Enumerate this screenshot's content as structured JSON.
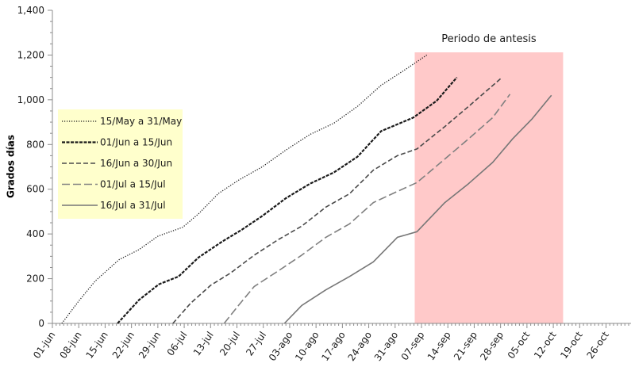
{
  "chart_data": {
    "type": "line",
    "title": "",
    "xlabel": "",
    "ylabel": "Grados días",
    "x_unit": "days since 01-jun",
    "xlim": [
      0,
      154
    ],
    "ylim": [
      0,
      1400
    ],
    "yticks": [
      0,
      200,
      400,
      600,
      800,
      1000,
      1200,
      1400
    ],
    "ytick_labels": [
      "0",
      "200",
      "400",
      "600",
      "800",
      "1,000",
      "1,200",
      "1,400"
    ],
    "xticks": [
      0,
      7,
      14,
      21,
      28,
      35,
      42,
      49,
      56,
      63,
      70,
      77,
      84,
      91,
      98,
      105,
      112,
      119,
      126,
      133,
      140,
      147
    ],
    "xtick_labels": [
      "01-jun",
      "08-jun",
      "15-jun",
      "22-jun",
      "29-jun",
      "06-jul",
      "13-jul",
      "20-jul",
      "27-jul",
      "03-ago",
      "10-ago",
      "17-ago",
      "24-ago",
      "31-ago",
      "07-sep",
      "14-sep",
      "21-sep",
      "28-sep",
      "05-oct",
      "12-oct",
      "19-oct",
      "26-oct"
    ],
    "grid": false,
    "legend_position": "left",
    "annotation": {
      "label": "Periodo de antesis",
      "x_range": [
        96.2,
        135.6
      ],
      "y_range": [
        0,
        1212
      ],
      "color": "#ffc9c9"
    },
    "series": [
      {
        "name": "15/May a 31/May",
        "style": "dotted",
        "color": "#1a1a1a",
        "x": [
          2.5,
          7,
          11.4,
          17.7,
          23,
          28,
          34.6,
          38.8,
          44,
          49.4,
          55.7,
          62,
          68.4,
          74.7,
          81,
          87.3,
          93.7,
          99.4
        ],
        "y": [
          0,
          100,
          190,
          285,
          330,
          390,
          430,
          490,
          580,
          640,
          700,
          775,
          845,
          895,
          970,
          1065,
          1135,
          1200
        ]
      },
      {
        "name": "01/Jun a 15/Jun",
        "style": "dashed-bold",
        "color": "#1a1a1a",
        "x": [
          17.3,
          23,
          28.3,
          33.5,
          38.8,
          45,
          50.4,
          55.7,
          62,
          68.4,
          74.7,
          81,
          87.3,
          95.8,
          102,
          107.4
        ],
        "y": [
          0,
          105,
          175,
          210,
          295,
          365,
          420,
          480,
          560,
          625,
          675,
          745,
          860,
          920,
          995,
          1100
        ]
      },
      {
        "name": "16/Jun a 30/Jun",
        "style": "dashed",
        "color": "#4a4a4a",
        "x": [
          32,
          36.7,
          42,
          47.3,
          53.6,
          60,
          66.2,
          72.6,
          78.9,
          85.2,
          91.6,
          96.8,
          104.2,
          110.5,
          119.4
        ],
        "y": [
          0,
          90,
          170,
          225,
          305,
          375,
          435,
          520,
          580,
          685,
          750,
          780,
          880,
          970,
          1100
        ]
      },
      {
        "name": "01/Jul a 15/Jul",
        "style": "long-dash",
        "color": "#808080",
        "x": [
          45.6,
          49.4,
          53.6,
          60,
          66.2,
          72.6,
          78.9,
          85.2,
          91.6,
          96.8,
          104.2,
          110.5,
          116.9,
          121.5
        ],
        "y": [
          0,
          80,
          165,
          235,
          305,
          385,
          445,
          540,
          590,
          630,
          735,
          825,
          920,
          1025
        ]
      },
      {
        "name": "16/Jul a 31/Jul",
        "style": "solid",
        "color": "#777777",
        "x": [
          61.6,
          66.2,
          72.6,
          78.9,
          85.2,
          91.6,
          96.8,
          104.2,
          110.5,
          116.9,
          122.2,
          127.4,
          132.5
        ],
        "y": [
          0,
          80,
          150,
          210,
          275,
          385,
          410,
          540,
          625,
          720,
          825,
          915,
          1020
        ]
      }
    ]
  }
}
